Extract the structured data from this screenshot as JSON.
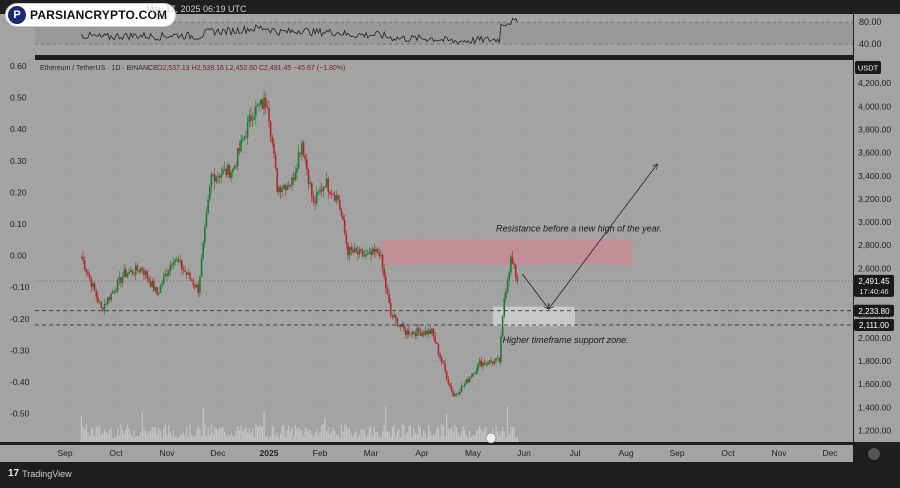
{
  "header": {
    "brand": "PARSIANCRYPTO.COM",
    "brand_initial": "P",
    "date": "May 17, 2025 06:19 UTC"
  },
  "footer": {
    "brand": "TradingView",
    "brand_mark": "17"
  },
  "colors": {
    "background": "#a3a3a3",
    "panel_border": "#1e1e1e",
    "up_candle": "#1f7a35",
    "down_candle": "#b02a2a",
    "resistance_zone": "#c98a96",
    "support_zone": "#d6d6d6",
    "price_badge": "#1a1a1a"
  },
  "chart_data": [
    {
      "type": "line",
      "panel": "oscillator",
      "right_axis_ticks": [
        "80.00",
        "40.00"
      ],
      "levels": [
        80,
        40
      ]
    },
    {
      "type": "candlestick",
      "panel": "main",
      "title": "Ethereum / TetherUS · 1D · BINANCE",
      "ohlc_label": "O2,537.13  H2,538.16  L2,452.60  C2,491.45  −45.67 (−1.80%)",
      "currency": "USDT",
      "y_range": [
        1100,
        4400
      ],
      "right_axis_ticks": [
        "4,200.00",
        "4,000.00",
        "3,800.00",
        "3,600.00",
        "3,400.00",
        "3,200.00",
        "3,000.00",
        "2,800.00",
        "2,600.00",
        "2,400.00",
        "2,200.00",
        "2,000.00",
        "1,800.00",
        "1,600.00",
        "1,400.00",
        "1,200.00"
      ],
      "left_axis_ticks": [
        "0.60",
        "0.50",
        "0.40",
        "0.30",
        "0.20",
        "0.10",
        "0.00",
        "-0.10",
        "-0.20",
        "-0.30",
        "-0.40",
        "-0.50"
      ],
      "x_ticks": [
        "Sep",
        "Oct",
        "Nov",
        "Dec",
        "2025",
        "Feb",
        "Mar",
        "Apr",
        "May",
        "Jun",
        "Jul",
        "Aug",
        "Sep",
        "Oct",
        "Nov",
        "Dec"
      ],
      "anchors": [
        {
          "date": "2024-08-25",
          "close": 2700
        },
        {
          "date": "2024-09-06",
          "close": 2250
        },
        {
          "date": "2024-09-20",
          "close": 2550
        },
        {
          "date": "2024-10-01",
          "close": 2600
        },
        {
          "date": "2024-10-10",
          "close": 2380
        },
        {
          "date": "2024-10-20",
          "close": 2700
        },
        {
          "date": "2024-11-04",
          "close": 2420
        },
        {
          "date": "2024-11-12",
          "close": 3400
        },
        {
          "date": "2024-11-25",
          "close": 3450
        },
        {
          "date": "2024-12-07",
          "close": 3950
        },
        {
          "date": "2024-12-16",
          "close": 4050
        },
        {
          "date": "2024-12-22",
          "close": 3300
        },
        {
          "date": "2024-12-31",
          "close": 3350
        },
        {
          "date": "2025-01-06",
          "close": 3700
        },
        {
          "date": "2025-01-13",
          "close": 3150
        },
        {
          "date": "2025-01-20",
          "close": 3350
        },
        {
          "date": "2025-01-28",
          "close": 3200
        },
        {
          "date": "2025-02-03",
          "close": 2750
        },
        {
          "date": "2025-02-15",
          "close": 2700
        },
        {
          "date": "2025-02-22",
          "close": 2750
        },
        {
          "date": "2025-03-01",
          "close": 2200
        },
        {
          "date": "2025-03-10",
          "close": 2050
        },
        {
          "date": "2025-03-26",
          "close": 2050
        },
        {
          "date": "2025-04-08",
          "close": 1500
        },
        {
          "date": "2025-04-15",
          "close": 1600
        },
        {
          "date": "2025-04-24",
          "close": 1780
        },
        {
          "date": "2025-05-06",
          "close": 1800
        },
        {
          "date": "2025-05-09",
          "close": 2350
        },
        {
          "date": "2025-05-13",
          "close": 2680
        },
        {
          "date": "2025-05-17",
          "close": 2491.45
        }
      ],
      "current_price": {
        "value": 2491.45,
        "label": "2,491.45",
        "countdown": "17:40:46"
      },
      "levels": [
        {
          "value": 2233.8,
          "label": "2,233.80"
        },
        {
          "value": 2111.0,
          "label": "2,111.00"
        }
      ],
      "zones": [
        {
          "name": "resistance",
          "start": "2025-02-23",
          "end": "2025-07-26",
          "low": 2630,
          "high": 2850
        },
        {
          "name": "support",
          "start": "2025-05-02",
          "end": "2025-06-21",
          "low": 2100,
          "high": 2270
        }
      ],
      "annotations": [
        {
          "text": "Resistance before a new high of the year.",
          "date": "2025-05-04",
          "value": 2920
        },
        {
          "text": "Higher timeframe support zone.",
          "date": "2025-05-08",
          "value": 1955
        }
      ],
      "projection": [
        {
          "date": "2025-05-20",
          "value": 2550
        },
        {
          "date": "2025-06-05",
          "value": 2250
        },
        {
          "date": "2025-08-10",
          "value": 3500
        }
      ]
    }
  ]
}
